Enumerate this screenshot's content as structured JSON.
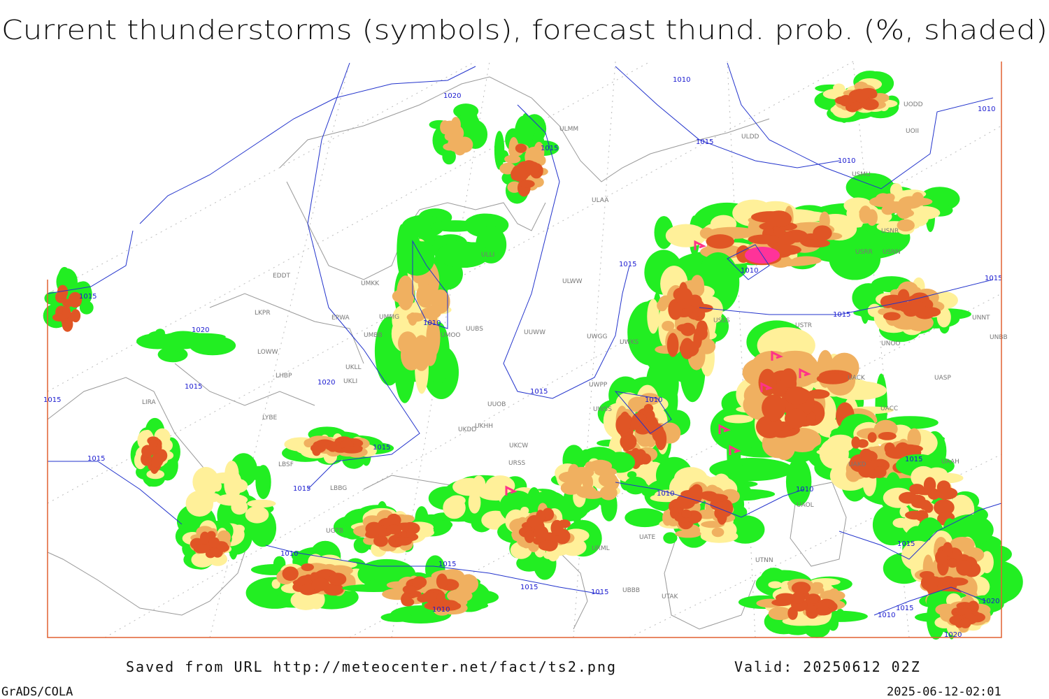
{
  "map": {
    "title": "Current thunderstorms (symbols), forecast thund. prob. (%, shaded)",
    "stations": [
      "ULDD",
      "ULAA",
      "ULMM",
      "USMU",
      "UOII",
      "UODD",
      "EDDT",
      "EPWA",
      "UMMG",
      "UMBB",
      "UMKK",
      "ULLI",
      "UUBS",
      "UMOO",
      "LKPR",
      "LOWW",
      "LHBP",
      "UKLL",
      "UKLI",
      "LIRA",
      "LYBE",
      "LBSF",
      "LBBG",
      "UUOB",
      "UKHH",
      "UKDD",
      "UKCW",
      "URSS",
      "UUWW",
      "UWGG",
      "UWKS",
      "UWPP",
      "UWSS",
      "ULWW",
      "USSS",
      "USTR",
      "UNOO",
      "UNNT",
      "UNBB",
      "UACK",
      "UASP",
      "UACC",
      "USRR",
      "USNN",
      "USNR",
      "UAOL",
      "UATE",
      "URML",
      "UTNN",
      "UBBB",
      "UTAK",
      "UGTB",
      "UAKD",
      "UAAH"
    ],
    "isobar_labels": [
      "1020",
      "1010",
      "1010",
      "1015",
      "1015",
      "1010",
      "1015",
      "1010",
      "1015",
      "1015",
      "1020",
      "1010",
      "1015",
      "1020",
      "1015",
      "1015",
      "1015",
      "1010",
      "1015",
      "1015",
      "1015",
      "1015",
      "1010",
      "1010",
      "1010",
      "1015",
      "1015",
      "1015",
      "1015",
      "1010",
      "1020",
      "1015",
      "1010",
      "1020"
    ]
  },
  "footer": {
    "saved": "Saved from URL http://meteocenter.net/fact/ts2.png",
    "valid": "Valid: 20250612 02Z",
    "software": "GrADS/COLA",
    "timestamp": "2025-06-12-02:01"
  }
}
